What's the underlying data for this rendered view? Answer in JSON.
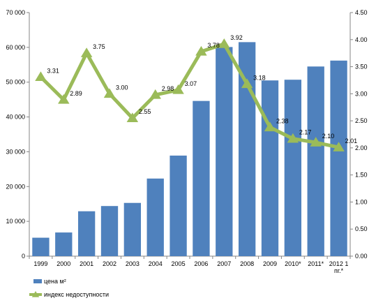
{
  "chart_data": {
    "type": "bar",
    "categories": [
      "1999",
      "2000",
      "2001",
      "2002",
      "2003",
      "2004",
      "2005",
      "2006",
      "2007",
      "2008",
      "2009",
      "2010*",
      "2011*",
      "2012 1 пг.*"
    ],
    "series": [
      {
        "name": "цена м²",
        "type": "bar",
        "axis": "left",
        "color": "#4F81BD",
        "values": [
          5300,
          6800,
          12900,
          14400,
          15300,
          22300,
          28900,
          44600,
          60100,
          61500,
          50500,
          50700,
          54500,
          56200
        ]
      },
      {
        "name": "индекс недоступности",
        "type": "line",
        "axis": "right",
        "color": "#9BBB59",
        "marker": "triangle",
        "values": [
          3.31,
          2.89,
          3.75,
          3.0,
          2.55,
          2.98,
          3.07,
          3.78,
          3.92,
          3.18,
          2.38,
          2.17,
          2.1,
          2.01
        ],
        "labels": [
          "3.31",
          "2.89",
          "3.75",
          "3.00",
          "2.55",
          "2.98",
          "3.07",
          "3.78",
          "3.92",
          "3.18",
          "2.38",
          "2.17",
          "2.10",
          "2.01"
        ]
      }
    ],
    "y_left": {
      "ylim": [
        0,
        70000
      ],
      "ticks": [
        0,
        10000,
        20000,
        30000,
        40000,
        50000,
        60000,
        70000
      ],
      "tick_labels": [
        "0",
        "10 000",
        "20 000",
        "30 000",
        "40 000",
        "50 000",
        "60 000",
        "70 000"
      ]
    },
    "y_right": {
      "ylim": [
        0,
        4.5
      ],
      "ticks": [
        0,
        0.5,
        1,
        1.5,
        2,
        2.5,
        3,
        3.5,
        4,
        4.5
      ],
      "tick_labels": [
        "0.00",
        "0.50",
        "1.00",
        "1.50",
        "2.00",
        "2.50",
        "3.00",
        "3.50",
        "4.00",
        "4.50"
      ]
    },
    "grid": false,
    "legend": {
      "position": "bottom-left",
      "entries": [
        "цена м²",
        "индекс недоступности"
      ]
    },
    "title": "",
    "xlabel": "",
    "ylabel": ""
  }
}
